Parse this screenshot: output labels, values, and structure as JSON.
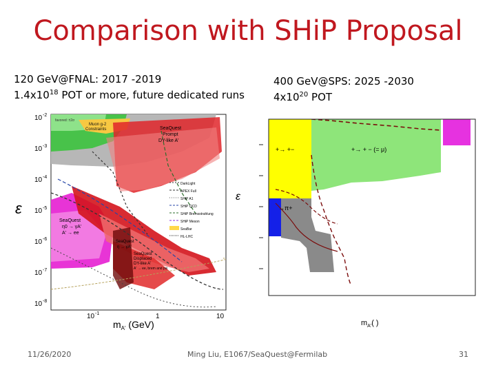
{
  "slide": {
    "title": "Comparison with SHiP Proposal",
    "left_caption": {
      "line1": "120 GeV@FNAL: 2017 -2019",
      "line2_prefix": "1.4x10",
      "line2_exp": "18",
      "line2_suffix": " POT or more, future dedicated runs"
    },
    "right_caption": {
      "line1": "400 GeV@SPS: 2025 -2030",
      "line2_prefix": "4x10",
      "line2_exp": "20",
      "line2_suffix": " POT"
    },
    "footer": {
      "date": "11/26/2020",
      "center": "Ming Liu, E1067/SeaQuest@Fermilab",
      "page": "31"
    }
  },
  "left_plot": {
    "y_label": "ε",
    "x_label": "m",
    "x_label_sub": "A'",
    "x_label_unit": " (GeV)",
    "y_ticks": [
      "10",
      "10",
      "10",
      "10",
      "10",
      "10",
      "10"
    ],
    "y_tick_exps": [
      "-2",
      "-3",
      "-4",
      "-5",
      "-6",
      "-7",
      "-8"
    ],
    "x_ticks": [
      "10",
      "1",
      "10"
    ],
    "x_tick_exps": [
      "-1",
      "",
      ""
    ],
    "labels": {
      "muon": "Muon g-2",
      "muon2": "Constraints",
      "favored": "favored: ±2σ",
      "sq_prompt1": "SeaQuest",
      "sq_prompt2": "Prompt",
      "sq_prompt3": "DY-like A'",
      "sq_eta1": "SeaQuest",
      "sq_eta2": "η0 → γA'",
      "sq_eta3": "A' → ee",
      "sq_eta4": "SeaQuest",
      "sq_eta5": "η → γA'",
      "sq_disp1": "SeaQuest",
      "sq_disp2": "Displaced",
      "sq_disp3": "DY-like A'",
      "sq_disp4": "A' → ee, brem and psi"
    },
    "legend": [
      "DarkLight",
      "APEX Full",
      "SHiP A1",
      "SHiP QCD",
      "SHiP Bremsstrahlung",
      "SHiP Meson",
      "SeaBar",
      "HL-LHC"
    ]
  },
  "right_plot": {
    "y_label": "ε",
    "x_label": "m",
    "x_label_sub": "A'",
    "x_label_unit": "(     )",
    "labels": {
      "a": "+→ +−",
      "b": "+→ + − (= μ)",
      "c": "→π+"
    }
  }
}
